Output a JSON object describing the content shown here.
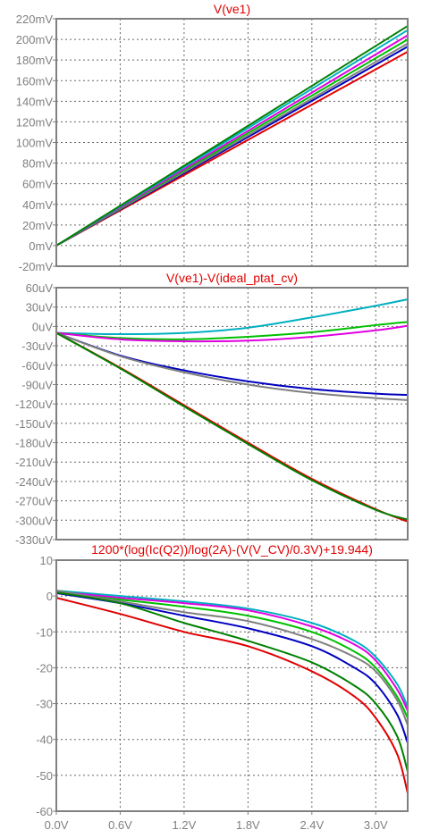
{
  "chart_data": [
    {
      "type": "line",
      "title": "V(ve1)",
      "yticks": [
        "220mV",
        "200mV",
        "180mV",
        "160mV",
        "140mV",
        "120mV",
        "100mV",
        "80mV",
        "60mV",
        "40mV",
        "20mV",
        "0mV",
        "-20mV"
      ],
      "ylim": [
        -20,
        220
      ],
      "xlim": [
        0,
        3.3
      ],
      "x": [
        0,
        3.3
      ],
      "series": [
        {
          "color": "#e00000",
          "values": [
            0,
            188
          ]
        },
        {
          "color": "#0000c0",
          "values": [
            0,
            193
          ]
        },
        {
          "color": "#808080",
          "values": [
            0,
            196
          ]
        },
        {
          "color": "#00c000",
          "values": [
            0,
            200
          ]
        },
        {
          "color": "#e000e0",
          "values": [
            0,
            204
          ]
        },
        {
          "color": "#00b0c0",
          "values": [
            0,
            209
          ]
        },
        {
          "color": "#008000",
          "values": [
            0,
            213
          ]
        }
      ]
    },
    {
      "type": "line",
      "title": "V(ve1)-V(ideal_ptat_cv)",
      "yticks": [
        "60uV",
        "30uV",
        "0uV",
        "-30uV",
        "-60uV",
        "-90uV",
        "-120uV",
        "-150uV",
        "-180uV",
        "-210uV",
        "-240uV",
        "-270uV",
        "-300uV",
        "-330uV"
      ],
      "ylim": [
        -330,
        60
      ],
      "xlim": [
        0,
        3.3
      ],
      "x": [
        0,
        0.6,
        1.2,
        1.8,
        2.4,
        3.0,
        3.3
      ],
      "series": [
        {
          "color": "#00b0c0",
          "values": [
            -10,
            -12,
            -10,
            -2,
            14,
            32,
            42
          ]
        },
        {
          "color": "#00c000",
          "values": [
            -10,
            -18,
            -20,
            -16,
            -9,
            2,
            7
          ]
        },
        {
          "color": "#e000e0",
          "values": [
            -10,
            -20,
            -23,
            -22,
            -16,
            -6,
            1
          ]
        },
        {
          "color": "#0000c0",
          "values": [
            -10,
            -45,
            -68,
            -85,
            -97,
            -104,
            -106
          ]
        },
        {
          "color": "#808080",
          "values": [
            -10,
            -46,
            -71,
            -90,
            -103,
            -111,
            -114
          ]
        },
        {
          "color": "#e00000",
          "values": [
            -10,
            -64,
            -122,
            -180,
            -236,
            -283,
            -302
          ]
        },
        {
          "color": "#008000",
          "values": [
            -10,
            -65,
            -124,
            -182,
            -238,
            -284,
            -299
          ]
        }
      ]
    },
    {
      "type": "line",
      "title": "1200*(log(Ic(Q2))/log(2A)-(V(V_CV)/0.3V)+19.944)",
      "yticks": [
        "10",
        "0",
        "-10",
        "-20",
        "-30",
        "-40",
        "-50",
        "-60"
      ],
      "xticks": [
        "0.0V",
        "0.6V",
        "1.2V",
        "1.8V",
        "2.4V",
        "3.0V"
      ],
      "ylim": [
        -60,
        10
      ],
      "xlim": [
        0,
        3.3
      ],
      "x": [
        0,
        0.6,
        1.2,
        1.8,
        2.4,
        2.8,
        3.0,
        3.2,
        3.3
      ],
      "series": [
        {
          "color": "#00b0c0",
          "values": [
            1.5,
            0,
            -1.5,
            -3.5,
            -7.5,
            -12.5,
            -17,
            -24.5,
            -31
          ]
        },
        {
          "color": "#e000e0",
          "values": [
            1.2,
            -0.5,
            -2,
            -4,
            -8.5,
            -13.5,
            -18,
            -26,
            -32
          ]
        },
        {
          "color": "#00c000",
          "values": [
            0.8,
            -1,
            -3,
            -5.5,
            -10,
            -15.5,
            -20,
            -28,
            -34
          ]
        },
        {
          "color": "#808080",
          "values": [
            1.5,
            -1.5,
            -4.5,
            -7,
            -12,
            -17,
            -21,
            -29,
            -36
          ]
        },
        {
          "color": "#0000c0",
          "values": [
            0.8,
            -2,
            -5.5,
            -9,
            -14,
            -20,
            -24.5,
            -33,
            -41
          ]
        },
        {
          "color": "#008000",
          "values": [
            1,
            -2,
            -7.5,
            -12.5,
            -18.5,
            -25,
            -30,
            -39,
            -49
          ]
        },
        {
          "color": "#e00000",
          "values": [
            -0.5,
            -5,
            -10,
            -14,
            -21,
            -28,
            -34,
            -44,
            -55
          ]
        }
      ]
    }
  ]
}
